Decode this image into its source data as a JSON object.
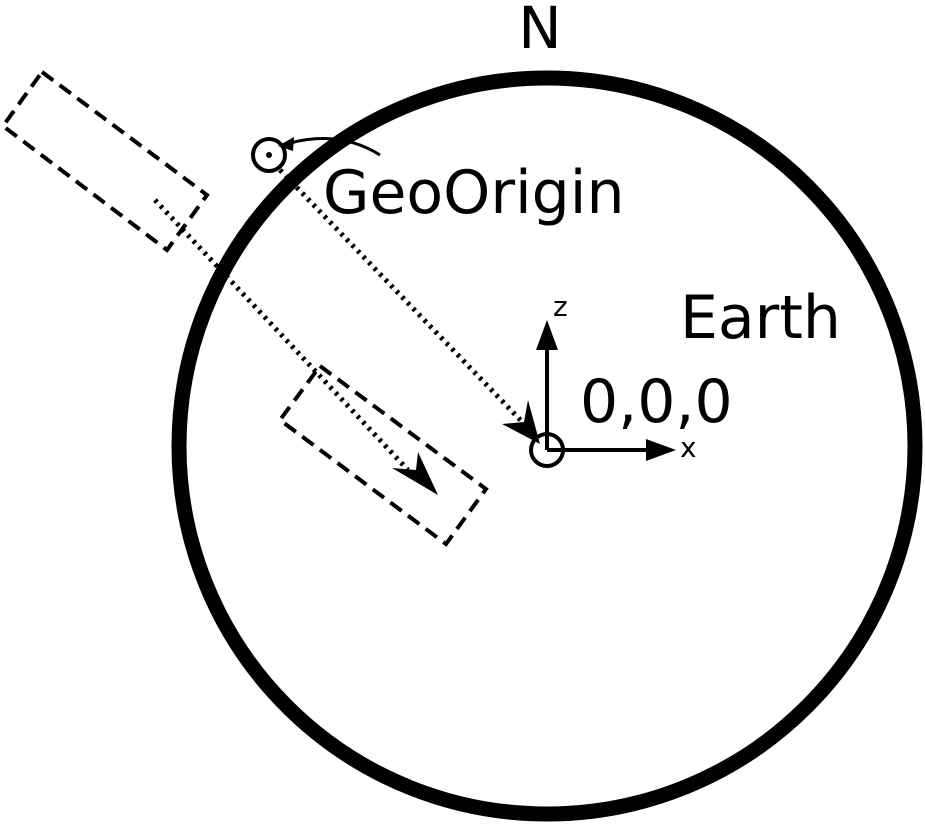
{
  "labels": {
    "north": "N",
    "geo_origin": "GeoOrigin",
    "earth": "Earth",
    "origin_coords": "0,0,0",
    "z_axis": "z",
    "x_axis": "x"
  },
  "colors": {
    "stroke": "#000000",
    "background": "#ffffff"
  }
}
